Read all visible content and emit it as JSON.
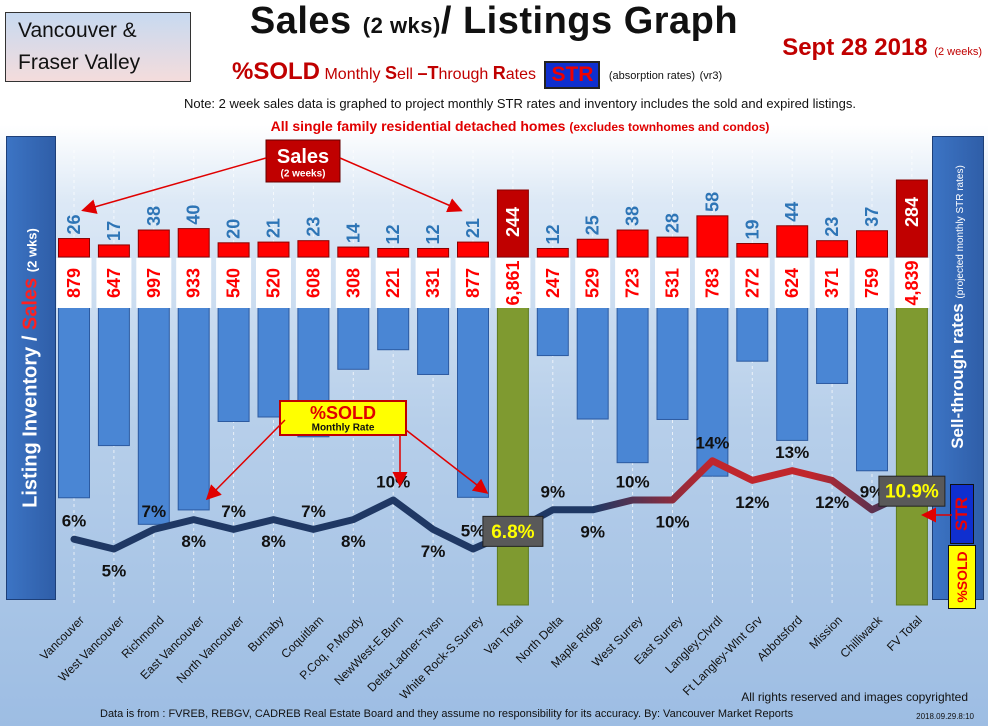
{
  "header": {
    "region_line1": "Vancouver &",
    "region_line2": "Fraser Valley",
    "title_main": "Sales",
    "title_mid": "(2 wks)",
    "title_end": "/ Listings Graph",
    "date": "Sept 28 2018",
    "date_note": "(2 weeks)",
    "subtitle_sold": "%SOLD",
    "subtitle_rates_1": "Monthly",
    "subtitle_s": "S",
    "subtitle_ell": "ell",
    "subtitle_t": "–T",
    "subtitle_hrough": "hrough",
    "subtitle_r": "R",
    "subtitle_ates": "ates",
    "subtitle_str": "STR",
    "subtitle_absorption": "(absorption rates)",
    "subtitle_version": "(vr3)",
    "note": "Note: 2 week sales data is graphed to project monthly STR rates and inventory includes the sold and expired listings.",
    "scope": "All single family residential detached homes",
    "scope_small": "(excludes townhomes and condos)"
  },
  "sidebars": {
    "left_part1": "Listing Inventory /",
    "left_part2": "Sales",
    "left_part3": "(2 wks)",
    "right_main": "Sell-through rates",
    "right_small": "(projected monthly STR rates)",
    "str_badge": "STR",
    "sold_badge": "%SOLD"
  },
  "callouts": {
    "sales_title": "Sales",
    "sales_sub": "(2 weeks)",
    "sold_title": "%SOLD",
    "sold_sub": "Monthly Rate"
  },
  "footer": {
    "rights": "All rights reserved and  images copyrighted",
    "source": "Data is from : FVREB, REBGV, CADREB Real Estate Board and they assume no responsibility for its accuracy. By: Vancouver Market Reports",
    "stamp": "2018.09.29.8:10"
  },
  "colors": {
    "sales_bar": "#ff0000",
    "total_sales_bar": "#c00000",
    "inventory_bar": "#4a86d4",
    "total_inventory_bar": "#7f9a30",
    "str_line_low": "#1f3864",
    "str_line_high": "#c0262c",
    "sales_label": "#2e75b6",
    "inventory_label": "#ff0000"
  },
  "chart_data": {
    "type": "bar",
    "categories": [
      "Vancouver",
      "West Vancouver",
      "Richmond",
      "East Vancouver",
      "North Vancouver",
      "Burnaby",
      "Coquitlam",
      "P.Coq, P.Moody",
      "NewWest-E.Burn",
      "Delta-Ladner-Twsn",
      "White Rock-S.Surrey",
      "Van Total",
      "North Delta",
      "Maple Ridge",
      "West Surrey",
      "East Surrey",
      "Langley,Clvrdl",
      "Ft Langley-Wlnt Grv",
      "Abbotsford",
      "Mission",
      "Chilliwack",
      "FV Total"
    ],
    "series": [
      {
        "name": "Sales",
        "values": [
          26,
          17,
          38,
          40,
          20,
          21,
          23,
          14,
          12,
          12,
          21,
          244,
          12,
          25,
          38,
          28,
          58,
          19,
          44,
          23,
          37,
          284
        ]
      },
      {
        "name": "Listing Inventory",
        "values": [
          879,
          647,
          997,
          933,
          540,
          520,
          608,
          308,
          221,
          331,
          877,
          6861,
          247,
          529,
          723,
          531,
          783,
          272,
          624,
          371,
          759,
          4839
        ]
      },
      {
        "name": "%SOLD",
        "values": [
          6,
          5,
          7,
          8,
          7,
          8,
          7,
          8,
          10,
          7,
          5,
          6.8,
          9,
          9,
          10,
          10,
          14,
          12,
          13,
          12,
          9,
          10.9
        ]
      }
    ],
    "str_labels": [
      "6%",
      "5%",
      "7%",
      "8%",
      "7%",
      "8%",
      "7%",
      "8%",
      "10%",
      "7%",
      "5%",
      "6.8%",
      "9%",
      "9%",
      "10%",
      "10%",
      "14%",
      "12%",
      "13%",
      "12%",
      "9%",
      "10.9%"
    ],
    "inventory_labels": [
      "879",
      "647",
      "997",
      "933",
      "540",
      "520",
      "608",
      "308",
      "221",
      "331",
      "877",
      "6,861",
      "247",
      "529",
      "723",
      "531",
      "783",
      "272",
      "624",
      "371",
      "759",
      "4,839"
    ],
    "totals": [
      "Van Total",
      "FV Total"
    ],
    "title": "Sales (2 wks)/ Listings Graph"
  }
}
